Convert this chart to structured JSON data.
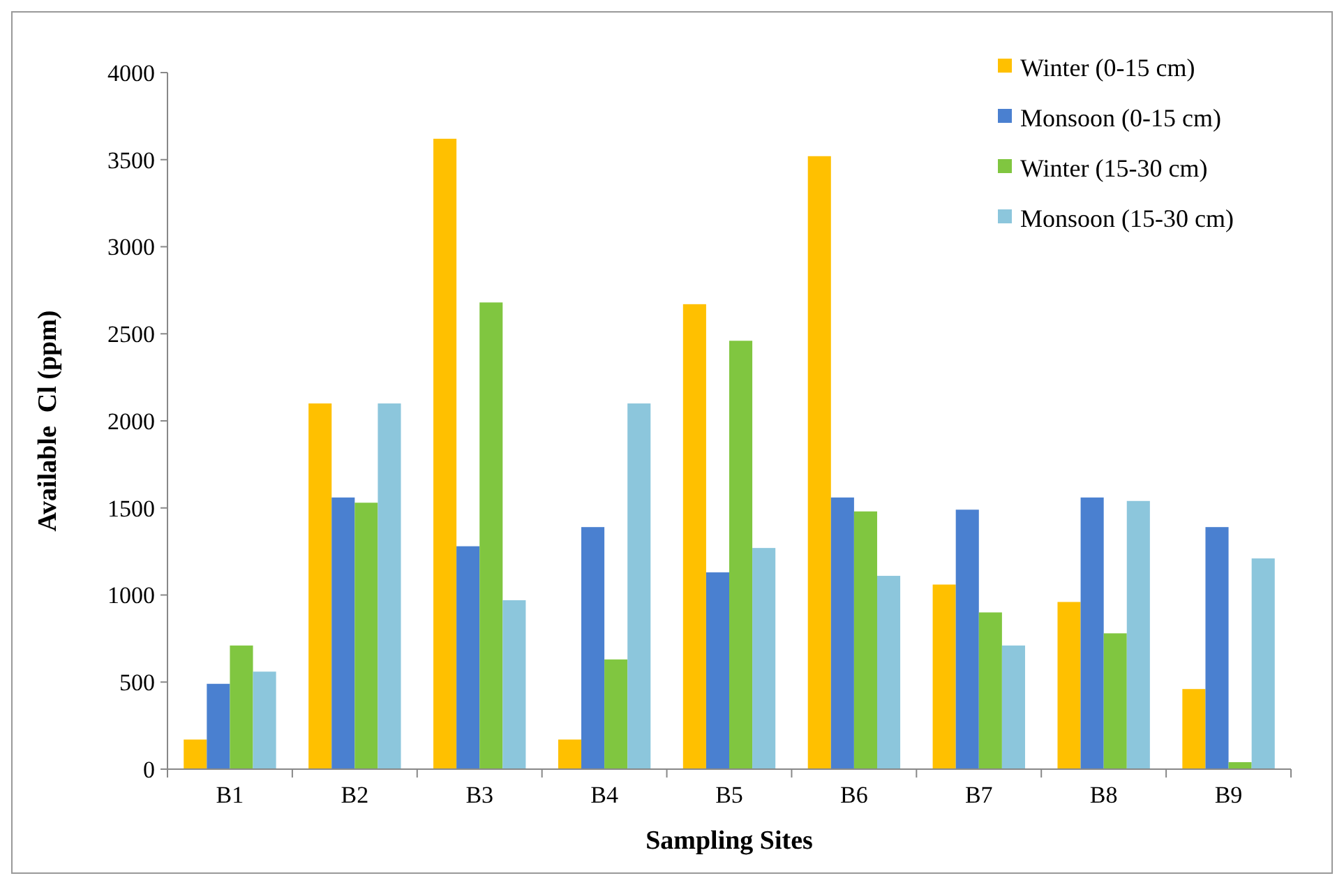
{
  "chart_data": {
    "type": "bar",
    "xlabel": "Sampling Sites",
    "ylabel": "Available  Cl (ppm)",
    "categories": [
      "B1",
      "B2",
      "B3",
      "B4",
      "B5",
      "B6",
      "B7",
      "B8",
      "B9"
    ],
    "series": [
      {
        "name": "Winter (0-15 cm)",
        "color": "#ffc000",
        "values": [
          170,
          2100,
          3620,
          170,
          2670,
          3520,
          1060,
          960,
          460
        ]
      },
      {
        "name": "Monsoon (0-15 cm)",
        "color": "#4a80d0",
        "values": [
          490,
          1560,
          1280,
          1390,
          1130,
          1560,
          1490,
          1560,
          1390
        ]
      },
      {
        "name": "Winter (15-30 cm)",
        "color": "#80c640",
        "values": [
          710,
          1530,
          2680,
          630,
          2460,
          1480,
          900,
          780,
          40
        ]
      },
      {
        "name": "Monsoon (15-30 cm)",
        "color": "#8cc6dc",
        "values": [
          560,
          2100,
          970,
          2100,
          1270,
          1110,
          710,
          1540,
          1210
        ]
      }
    ],
    "ylim": [
      0,
      4000
    ],
    "yticks": [
      0,
      500,
      1000,
      1500,
      2000,
      2500,
      3000,
      3500,
      4000
    ],
    "grid": false,
    "legend": "top right"
  }
}
